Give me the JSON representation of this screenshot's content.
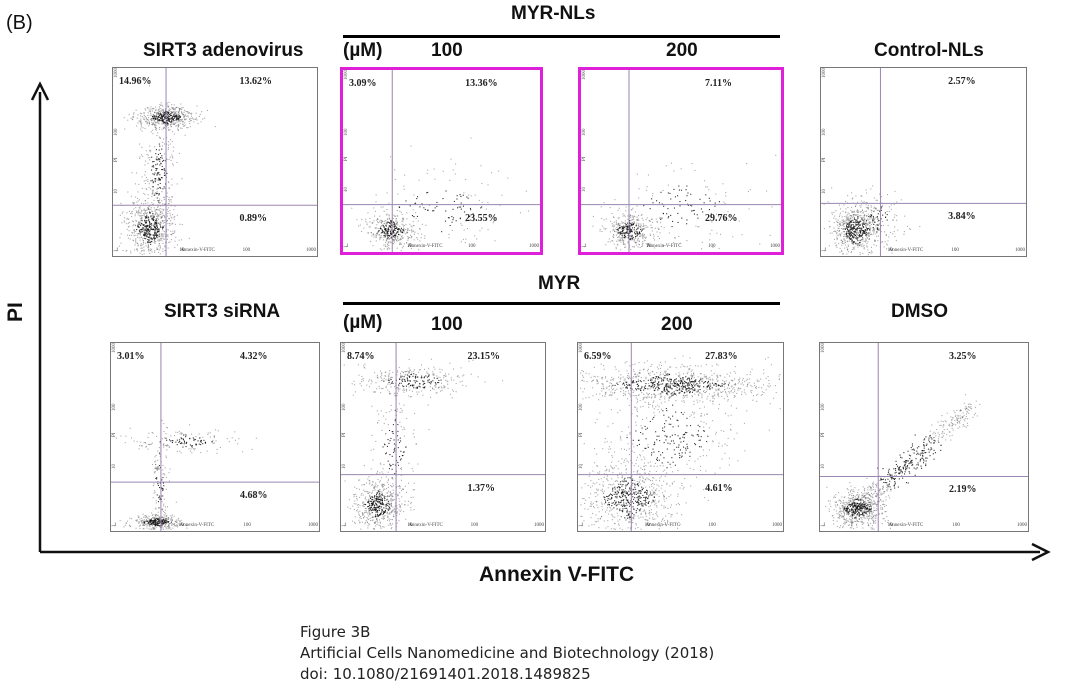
{
  "figure_label": "(B)",
  "group_labels": {
    "myr_nl": "MYR-NLs",
    "myr": "MYR"
  },
  "conc_unit": "(µM)",
  "y_axis_title": "PI",
  "x_axis_title": "Annexin V-FITC",
  "caption": {
    "line1": "Figure 3B",
    "line2": "Artificial Cells Nanomedicine and Biotechnology (2018)",
    "line3": "doi: 10.1080/21691401.2018.1489825"
  },
  "colors": {
    "highlight": "#e020d8",
    "gate": "#9a86b0",
    "dots": "#222222"
  },
  "chart_data": [
    {
      "type": "scatter",
      "title": "SIRT3 adenovirus",
      "quadrants": {
        "upper_left": "14.96%",
        "upper_right": "13.62%",
        "lower_left": "",
        "lower_right": "0.89%"
      },
      "highlight": false
    },
    {
      "type": "scatter",
      "title": "100",
      "quadrants": {
        "upper_left": "3.09%",
        "upper_right": "13.36%",
        "lower_left": "",
        "lower_right": "23.55%"
      },
      "highlight": true
    },
    {
      "type": "scatter",
      "title": "200",
      "quadrants": {
        "upper_left": "",
        "upper_right": "7.11%",
        "lower_left": "",
        "lower_right": "29.76%"
      },
      "highlight": true
    },
    {
      "type": "scatter",
      "title": "Control-NLs",
      "quadrants": {
        "upper_left": "",
        "upper_right": "2.57%",
        "lower_left": "",
        "lower_right": "3.84%"
      },
      "highlight": false
    },
    {
      "type": "scatter",
      "title": "SIRT3 siRNA",
      "quadrants": {
        "upper_left": "3.01%",
        "upper_right": "4.32%",
        "lower_left": "",
        "lower_right": "4.68%"
      },
      "highlight": false
    },
    {
      "type": "scatter",
      "title": "100",
      "quadrants": {
        "upper_left": "8.74%",
        "upper_right": "23.15%",
        "lower_left": "",
        "lower_right": "1.37%"
      },
      "highlight": false
    },
    {
      "type": "scatter",
      "title": "200",
      "quadrants": {
        "upper_left": "6.59%",
        "upper_right": "27.83%",
        "lower_left": "",
        "lower_right": "4.61%"
      },
      "highlight": false
    },
    {
      "type": "scatter",
      "title": "DMSO",
      "quadrants": {
        "upper_left": "",
        "upper_right": "3.25%",
        "lower_left": "",
        "lower_right": "2.19%"
      },
      "highlight": false
    }
  ],
  "x_ticks": [
    "1",
    "10",
    "100",
    "1000"
  ],
  "y_ticks": [
    "1",
    "10",
    "100",
    "1000"
  ],
  "mini_axis_x": "Annexin-V-FITC",
  "mini_axis_y": "PI"
}
